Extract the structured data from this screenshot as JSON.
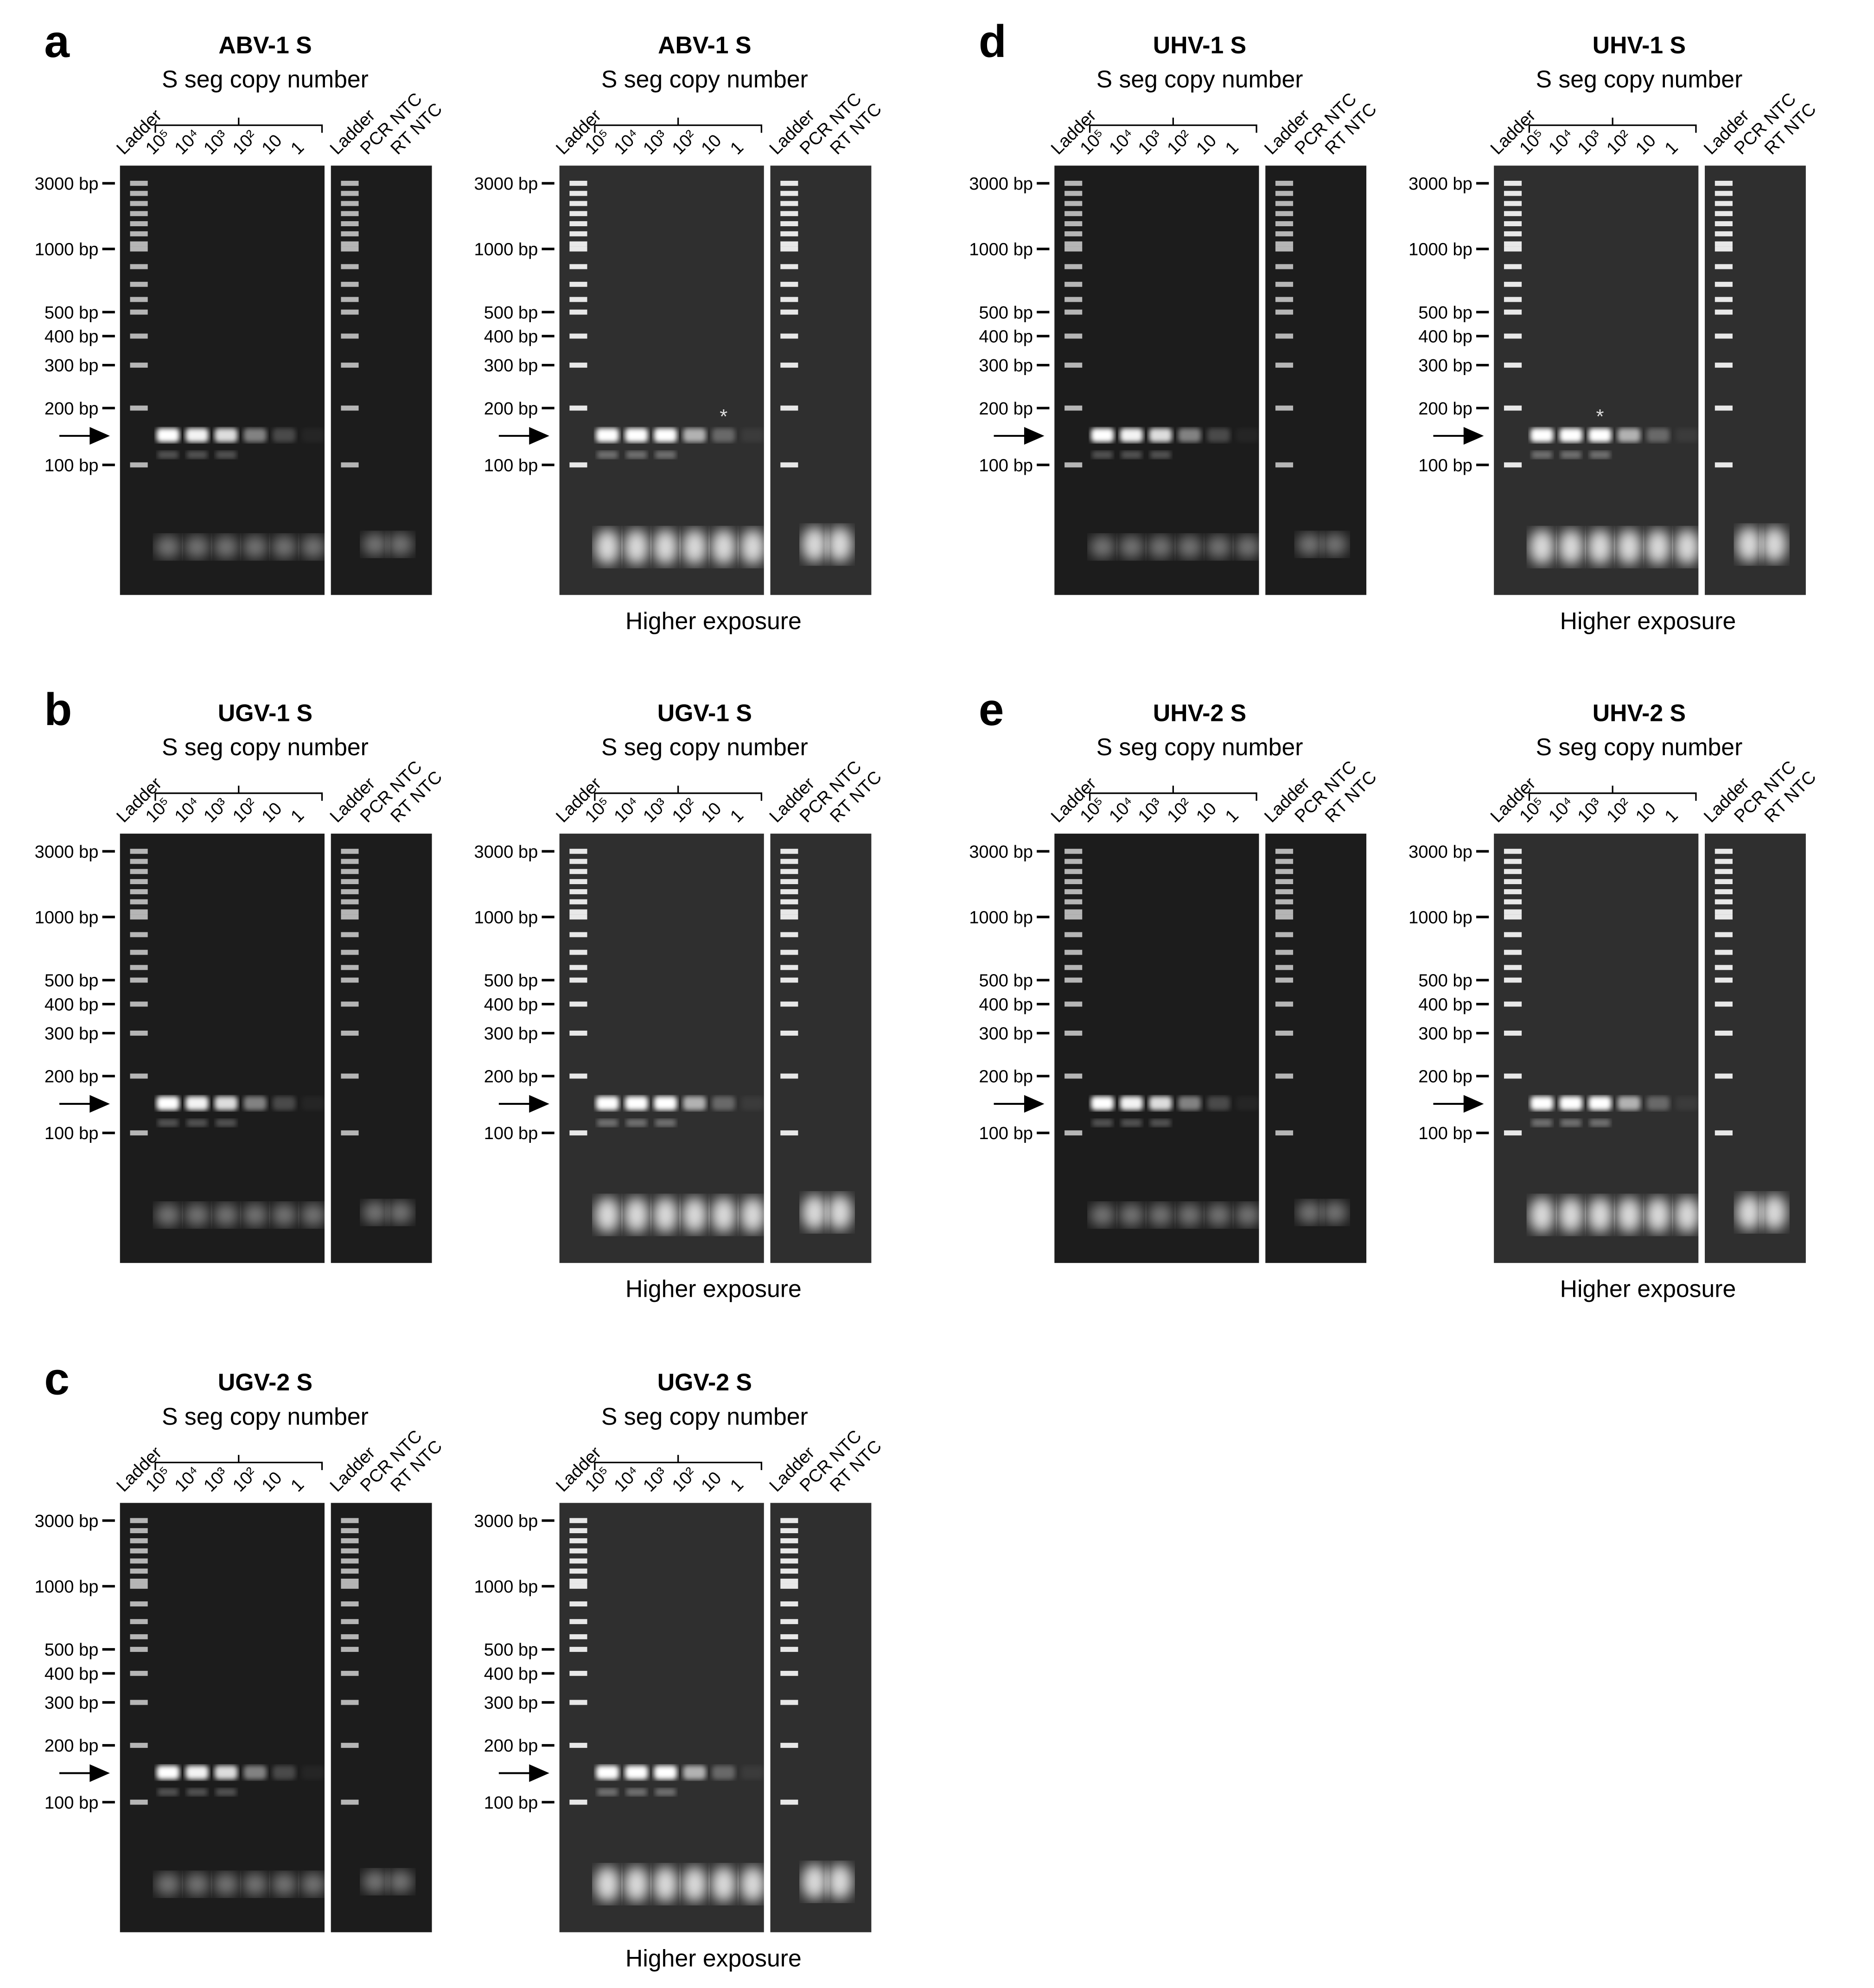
{
  "panels": [
    {
      "letter": "a",
      "gels": [
        {
          "title": "ABV-1 S",
          "subtitle": "S seg copy number",
          "lanes": [
            "Ladder",
            "10⁵",
            "10⁴",
            "10³",
            "10²",
            "10",
            "1"
          ],
          "control_lanes": [
            "Ladder",
            "PCR NTC",
            "RT NTC"
          ],
          "sizes": [
            "3000 bp",
            "1000 bp",
            "500 bp",
            "400 bp",
            "300 bp",
            "200 bp",
            "100 bp"
          ]
        },
        {
          "title": "ABV-1 S",
          "subtitle": "S seg copy number",
          "lanes": [
            "Ladder",
            "10⁵",
            "10⁴",
            "10³",
            "10²",
            "10",
            "1"
          ],
          "control_lanes": [
            "Ladder",
            "PCR NTC",
            "RT NTC"
          ],
          "sizes": [
            "3000 bp",
            "1000 bp",
            "500 bp",
            "400 bp",
            "300 bp",
            "200 bp",
            "100 bp"
          ],
          "note": "Higher exposure",
          "asterisk": "*"
        }
      ]
    },
    {
      "letter": "b",
      "gels": [
        {
          "title": "UGV-1 S",
          "subtitle": "S seg copy number",
          "lanes": [
            "Ladder",
            "10⁵",
            "10⁴",
            "10³",
            "10²",
            "10",
            "1"
          ],
          "control_lanes": [
            "Ladder",
            "PCR NTC",
            "RT NTC"
          ],
          "sizes": [
            "3000 bp",
            "1000 bp",
            "500 bp",
            "400 bp",
            "300 bp",
            "200 bp",
            "100 bp"
          ]
        },
        {
          "title": "UGV-1 S",
          "subtitle": "S seg copy number",
          "lanes": [
            "Ladder",
            "10⁵",
            "10⁴",
            "10³",
            "10²",
            "10",
            "1"
          ],
          "control_lanes": [
            "Ladder",
            "PCR NTC",
            "RT NTC"
          ],
          "sizes": [
            "3000 bp",
            "1000 bp",
            "500 bp",
            "400 bp",
            "300 bp",
            "200 bp",
            "100 bp"
          ],
          "note": "Higher exposure"
        }
      ]
    },
    {
      "letter": "c",
      "gels": [
        {
          "title": "UGV-2 S",
          "subtitle": "S seg copy number",
          "lanes": [
            "Ladder",
            "10⁵",
            "10⁴",
            "10³",
            "10²",
            "10",
            "1"
          ],
          "control_lanes": [
            "Ladder",
            "PCR NTC",
            "RT NTC"
          ],
          "sizes": [
            "3000 bp",
            "1000 bp",
            "500 bp",
            "400 bp",
            "300 bp",
            "200 bp",
            "100 bp"
          ]
        },
        {
          "title": "UGV-2 S",
          "subtitle": "S seg copy number",
          "lanes": [
            "Ladder",
            "10⁵",
            "10⁴",
            "10³",
            "10²",
            "10",
            "1"
          ],
          "control_lanes": [
            "Ladder",
            "PCR NTC",
            "RT NTC"
          ],
          "sizes": [
            "3000 bp",
            "1000 bp",
            "500 bp",
            "400 bp",
            "300 bp",
            "200 bp",
            "100 bp"
          ],
          "note": "Higher exposure"
        }
      ]
    },
    {
      "letter": "d",
      "gels": [
        {
          "title": "UHV-1 S",
          "subtitle": "S seg copy number",
          "lanes": [
            "Ladder",
            "10⁵",
            "10⁴",
            "10³",
            "10²",
            "10",
            "1"
          ],
          "control_lanes": [
            "Ladder",
            "PCR NTC",
            "RT NTC"
          ],
          "sizes": [
            "3000 bp",
            "1000 bp",
            "500 bp",
            "400 bp",
            "300 bp",
            "200 bp",
            "100 bp"
          ]
        },
        {
          "title": "UHV-1 S",
          "subtitle": "S seg copy number",
          "lanes": [
            "Ladder",
            "10⁵",
            "10⁴",
            "10³",
            "10²",
            "10",
            "1"
          ],
          "control_lanes": [
            "Ladder",
            "PCR NTC",
            "RT NTC"
          ],
          "sizes": [
            "3000 bp",
            "1000 bp",
            "500 bp",
            "400 bp",
            "300 bp",
            "200 bp",
            "100 bp"
          ],
          "note": "Higher exposure",
          "asterisk": "*"
        }
      ]
    },
    {
      "letter": "e",
      "gels": [
        {
          "title": "UHV-2 S",
          "subtitle": "S seg copy number",
          "lanes": [
            "Ladder",
            "10⁵",
            "10⁴",
            "10³",
            "10²",
            "10",
            "1"
          ],
          "control_lanes": [
            "Ladder",
            "PCR NTC",
            "RT NTC"
          ],
          "sizes": [
            "3000 bp",
            "1000 bp",
            "500 bp",
            "400 bp",
            "300 bp",
            "200 bp",
            "100 bp"
          ]
        },
        {
          "title": "UHV-2 S",
          "subtitle": "S seg copy number",
          "lanes": [
            "Ladder",
            "10⁵",
            "10⁴",
            "10³",
            "10²",
            "10",
            "1"
          ],
          "control_lanes": [
            "Ladder",
            "PCR NTC",
            "RT NTC"
          ],
          "sizes": [
            "3000 bp",
            "1000 bp",
            "500 bp",
            "400 bp",
            "300 bp",
            "200 bp",
            "100 bp"
          ],
          "note": "Higher exposure"
        }
      ]
    }
  ]
}
